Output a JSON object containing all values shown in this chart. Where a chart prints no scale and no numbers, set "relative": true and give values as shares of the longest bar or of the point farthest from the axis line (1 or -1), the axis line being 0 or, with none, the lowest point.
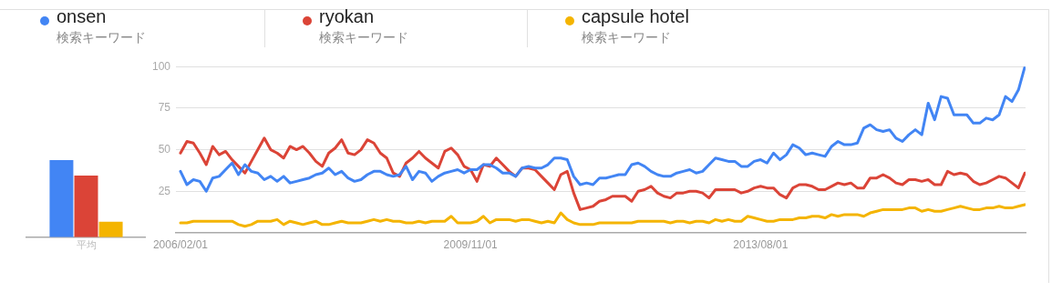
{
  "chart_data": [
    {
      "type": "bar",
      "categories": [
        "平均"
      ],
      "relative": true,
      "legend": false,
      "grid": false,
      "series": [
        {
          "color": "#4285f4",
          "values": [
            1
          ]
        },
        {
          "color": "#db4437",
          "values": [
            0.8
          ]
        },
        {
          "color": "#f4b400",
          "values": [
            0.2
          ]
        }
      ]
    },
    {
      "type": "line",
      "legend": "top",
      "grid": "y",
      "marker": "none",
      "line_style": "solid",
      "annotations": [
        "検索キーワード",
        "検索キーワード",
        "検索キーワード"
      ],
      "ylim": [
        0,
        100
      ],
      "yticks": [
        25,
        50,
        75,
        100
      ],
      "xlim": [
        "2006-01-10",
        "2017-01-04"
      ],
      "xticks": [
        {
          "value": "2006-02-01",
          "label": "2006/02/01"
        },
        {
          "value": "2009-11-01",
          "label": "2009/11/01"
        },
        {
          "value": "2013-08-01",
          "label": "2013/08/01"
        }
      ],
      "x": [
        "2006-02",
        "2006-03",
        "2006-04",
        "2006-05",
        "2006-06",
        "2006-07",
        "2006-08",
        "2006-09",
        "2006-10",
        "2006-11",
        "2006-12",
        "2007-01",
        "2007-02",
        "2007-03",
        "2007-04",
        "2007-05",
        "2007-06",
        "2007-07",
        "2007-08",
        "2007-09",
        "2007-10",
        "2007-11",
        "2007-12",
        "2008-01",
        "2008-02",
        "2008-03",
        "2008-04",
        "2008-05",
        "2008-06",
        "2008-07",
        "2008-08",
        "2008-09",
        "2008-10",
        "2008-11",
        "2008-12",
        "2009-01",
        "2009-02",
        "2009-03",
        "2009-04",
        "2009-05",
        "2009-06",
        "2009-07",
        "2009-08",
        "2009-09",
        "2009-10",
        "2009-11",
        "2009-12",
        "2010-01",
        "2010-02",
        "2010-03",
        "2010-04",
        "2010-05",
        "2010-06",
        "2010-07",
        "2010-08",
        "2010-09",
        "2010-10",
        "2010-11",
        "2010-12",
        "2011-01",
        "2011-02",
        "2011-03",
        "2011-04",
        "2011-05",
        "2011-06",
        "2011-07",
        "2011-08",
        "2011-09",
        "2011-10",
        "2011-11",
        "2011-12",
        "2012-01",
        "2012-02",
        "2012-03",
        "2012-04",
        "2012-05",
        "2012-06",
        "2012-07",
        "2012-08",
        "2012-09",
        "2012-10",
        "2012-11",
        "2012-12",
        "2013-01",
        "2013-02",
        "2013-03",
        "2013-04",
        "2013-05",
        "2013-06",
        "2013-07",
        "2013-08",
        "2013-09",
        "2013-10",
        "2013-11",
        "2013-12",
        "2014-01",
        "2014-02",
        "2014-03",
        "2014-04",
        "2014-05",
        "2014-06",
        "2014-07",
        "2014-08",
        "2014-09",
        "2014-10",
        "2014-11",
        "2014-12",
        "2015-01",
        "2015-02",
        "2015-03",
        "2015-04",
        "2015-05",
        "2015-06",
        "2015-07",
        "2015-08",
        "2015-09",
        "2015-10",
        "2015-11",
        "2015-12",
        "2016-01",
        "2016-02",
        "2016-03",
        "2016-04",
        "2016-05",
        "2016-06",
        "2016-07",
        "2016-08",
        "2016-09",
        "2016-10",
        "2016-11",
        "2016-12",
        "2017-01"
      ],
      "series": [
        {
          "name": "onsen",
          "color": "#4285f4",
          "values": [
            37,
            29,
            32,
            31,
            25,
            33,
            34,
            38,
            42,
            35,
            41,
            37,
            36,
            32,
            34,
            31,
            34,
            30,
            31,
            32,
            33,
            35,
            36,
            39,
            35,
            37,
            33,
            31,
            32,
            35,
            37,
            37,
            35,
            34,
            35,
            40,
            32,
            37,
            36,
            31,
            34,
            36,
            37,
            38,
            36,
            38,
            38,
            41,
            41,
            39,
            36,
            36,
            34,
            39,
            40,
            39,
            39,
            41,
            45,
            45,
            44,
            34,
            29,
            30,
            29,
            33,
            33,
            34,
            35,
            35,
            41,
            42,
            40,
            37,
            35,
            34,
            34,
            36,
            37,
            38,
            36,
            37,
            41,
            45,
            44,
            43,
            43,
            40,
            40,
            43,
            44,
            42,
            48,
            44,
            47,
            53,
            51,
            47,
            48,
            47,
            46,
            52,
            55,
            53,
            53,
            54,
            63,
            65,
            62,
            61,
            62,
            57,
            55,
            59,
            62,
            59,
            78,
            68,
            82,
            81,
            71,
            71,
            71,
            66,
            66,
            69,
            68,
            71,
            82,
            79,
            86,
            100
          ]
        },
        {
          "name": "ryokan",
          "color": "#db4437",
          "values": [
            48,
            55,
            54,
            48,
            41,
            52,
            47,
            49,
            44,
            40,
            36,
            43,
            50,
            57,
            50,
            48,
            45,
            52,
            50,
            52,
            48,
            43,
            40,
            48,
            51,
            56,
            48,
            47,
            50,
            56,
            54,
            48,
            45,
            36,
            34,
            42,
            45,
            49,
            45,
            42,
            39,
            49,
            51,
            47,
            40,
            38,
            31,
            41,
            40,
            45,
            41,
            37,
            34,
            39,
            39,
            38,
            34,
            30,
            26,
            35,
            37,
            24,
            14,
            15,
            16,
            19,
            20,
            22,
            22,
            22,
            19,
            25,
            26,
            28,
            24,
            22,
            21,
            24,
            24,
            25,
            25,
            24,
            21,
            26,
            26,
            26,
            26,
            24,
            25,
            27,
            28,
            27,
            27,
            23,
            21,
            27,
            29,
            29,
            28,
            26,
            26,
            28,
            30,
            29,
            30,
            27,
            27,
            33,
            33,
            35,
            33,
            30,
            29,
            32,
            32,
            31,
            32,
            29,
            29,
            37,
            35,
            36,
            35,
            31,
            29,
            30,
            32,
            34,
            33,
            30,
            27,
            36
          ]
        },
        {
          "name": "capsule hotel",
          "color": "#f4b400",
          "values": [
            6,
            6,
            7,
            7,
            7,
            7,
            7,
            7,
            7,
            5,
            4,
            5,
            7,
            7,
            7,
            8,
            5,
            7,
            6,
            5,
            6,
            7,
            5,
            5,
            6,
            7,
            6,
            6,
            6,
            7,
            8,
            7,
            8,
            7,
            7,
            6,
            6,
            7,
            6,
            7,
            7,
            7,
            10,
            6,
            6,
            6,
            7,
            10,
            6,
            8,
            8,
            8,
            7,
            8,
            8,
            7,
            6,
            7,
            6,
            12,
            8,
            6,
            5,
            5,
            5,
            6,
            6,
            6,
            6,
            6,
            6,
            7,
            7,
            7,
            7,
            7,
            6,
            7,
            7,
            6,
            7,
            7,
            6,
            8,
            7,
            8,
            7,
            7,
            10,
            9,
            8,
            7,
            7,
            8,
            8,
            8,
            9,
            9,
            10,
            10,
            9,
            11,
            10,
            11,
            11,
            11,
            10,
            12,
            13,
            14,
            14,
            14,
            14,
            15,
            15,
            13,
            14,
            13,
            13,
            14,
            15,
            16,
            15,
            14,
            14,
            15,
            15,
            16,
            15,
            15,
            16,
            17
          ]
        }
      ]
    }
  ]
}
